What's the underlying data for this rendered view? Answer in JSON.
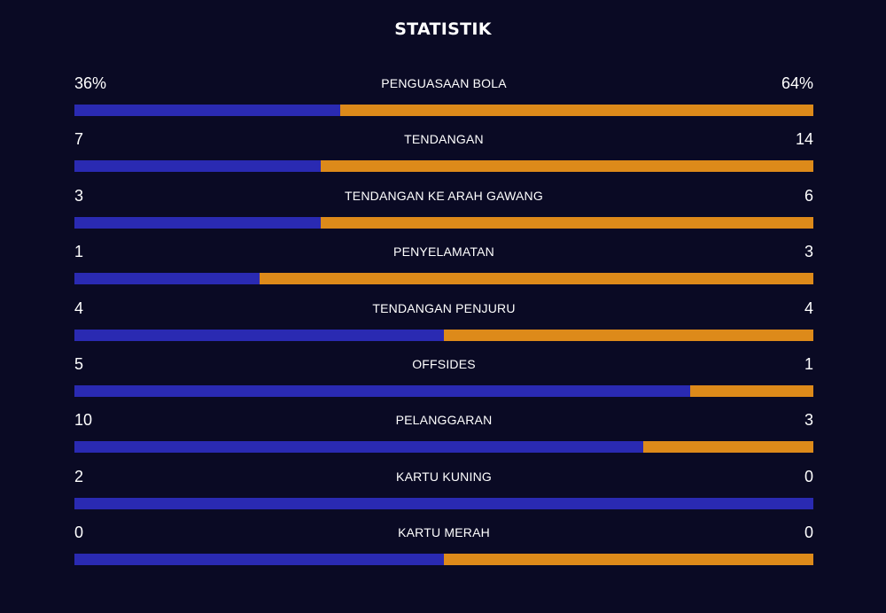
{
  "title": "STATISTIK",
  "colors": {
    "background": "#0a0a24",
    "home": "#2a2ab2",
    "away": "#dd8a1a"
  },
  "chart_data": {
    "type": "bar",
    "title": "STATISTIK",
    "categories": [
      "PENGUASAAN BOLA",
      "TENDANGAN",
      "TENDANGAN KE ARAH GAWANG",
      "PENYELAMATAN",
      "TENDANGAN PENJURU",
      "OFFSIDES",
      "PELANGGARAN",
      "KARTU KUNING",
      "KARTU MERAH"
    ],
    "series": [
      {
        "values": [
          36,
          7,
          3,
          1,
          4,
          5,
          10,
          2,
          0
        ]
      },
      {
        "values": [
          64,
          14,
          6,
          3,
          4,
          1,
          3,
          0,
          0
        ]
      }
    ],
    "display_left": [
      "36%",
      "7",
      "3",
      "1",
      "4",
      "5",
      "10",
      "2",
      "0"
    ],
    "display_right": [
      "64%",
      "14",
      "6",
      "3",
      "4",
      "1",
      "3",
      "0",
      "0"
    ]
  }
}
